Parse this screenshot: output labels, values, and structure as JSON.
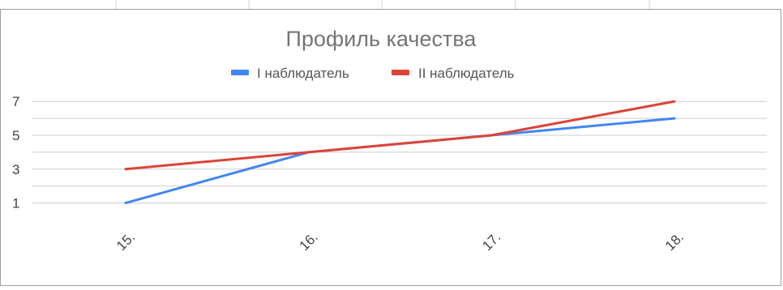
{
  "chart_data": {
    "type": "line",
    "title": "Профиль качества",
    "categories": [
      "15.",
      "16.",
      "17.",
      "18."
    ],
    "series": [
      {
        "name": "I наблюдатель",
        "color": "#4285f4",
        "values": [
          1,
          4,
          5,
          6
        ]
      },
      {
        "name": "II наблюдатель",
        "color": "#db4437",
        "values": [
          3,
          4,
          5,
          7
        ]
      }
    ],
    "yticks": [
      1,
      3,
      5,
      7
    ],
    "ylim": [
      0,
      7
    ],
    "grid": true,
    "legend_position": "top-center",
    "xlabel": "",
    "ylabel": ""
  }
}
